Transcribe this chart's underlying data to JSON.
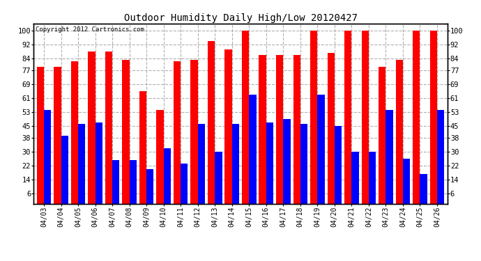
{
  "title": "Outdoor Humidity Daily High/Low 20120427",
  "copyright": "Copyright 2012 Cartronics.com",
  "dates": [
    "04/03",
    "04/04",
    "04/05",
    "04/06",
    "04/07",
    "04/08",
    "04/09",
    "04/10",
    "04/11",
    "04/12",
    "04/13",
    "04/14",
    "04/15",
    "04/16",
    "04/17",
    "04/18",
    "04/19",
    "04/20",
    "04/21",
    "04/22",
    "04/23",
    "04/24",
    "04/25",
    "04/26"
  ],
  "highs": [
    79,
    79,
    82,
    88,
    88,
    83,
    65,
    54,
    82,
    83,
    94,
    89,
    100,
    86,
    86,
    86,
    100,
    87,
    100,
    100,
    79,
    83,
    100,
    100
  ],
  "lows": [
    54,
    39,
    46,
    47,
    25,
    25,
    20,
    32,
    23,
    46,
    30,
    46,
    63,
    47,
    49,
    46,
    63,
    45,
    30,
    30,
    54,
    26,
    17,
    54
  ],
  "high_color": "#ff0000",
  "low_color": "#0000ff",
  "bg_color": "#ffffff",
  "grid_color": "#b0b0b0",
  "yticks": [
    6,
    14,
    22,
    30,
    38,
    45,
    53,
    61,
    69,
    77,
    84,
    92,
    100
  ],
  "ylim": [
    0,
    104
  ],
  "bar_width": 0.42,
  "figwidth": 6.9,
  "figheight": 3.75,
  "dpi": 100
}
